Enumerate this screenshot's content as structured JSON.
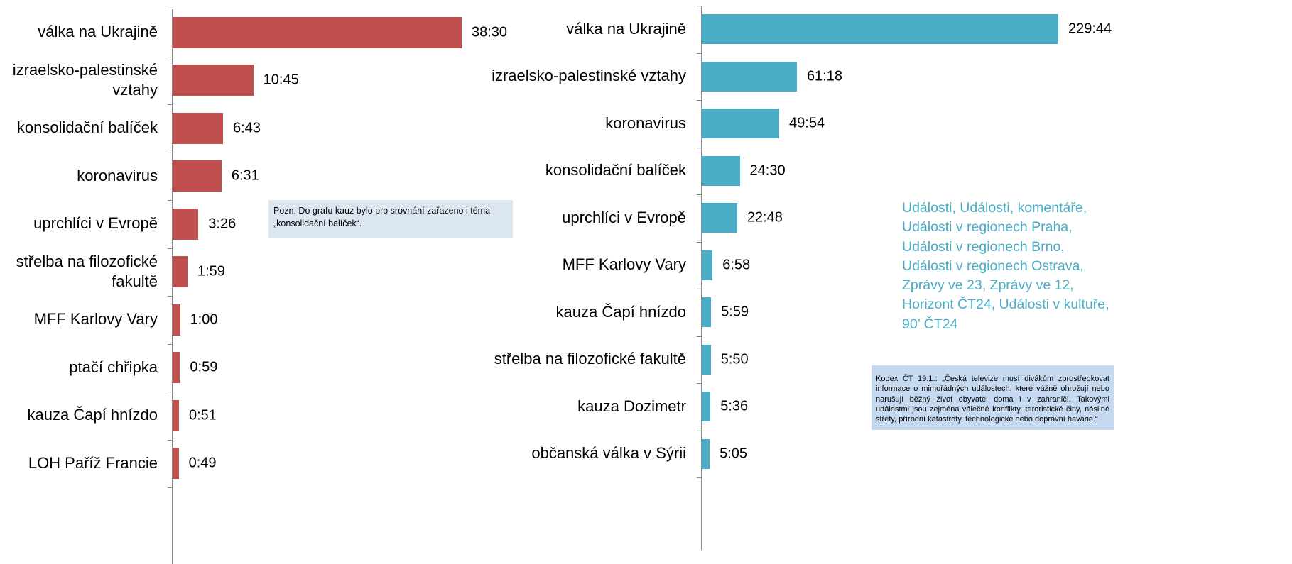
{
  "charts": [
    {
      "type": "bar",
      "orientation": "horizontal",
      "color": "#c0504d",
      "categories": [
        "válka na Ukrajině",
        "izraelsko-palestinské vztahy",
        "konsolidační balíček",
        "koronavirus",
        "uprchlíci v Evropě",
        "střelba na filozofické fakultě",
        "MFF Karlovy Vary",
        "ptačí chřipka",
        "kauza Čapí hnízdo",
        "LOH Paříž Francie"
      ],
      "values": [
        2310,
        645,
        403,
        391,
        206,
        119,
        60,
        59,
        51,
        49
      ],
      "value_labels": [
        "38:30",
        "10:45",
        "6:43",
        "6:31",
        "3:26",
        "1:59",
        "1:00",
        "0:59",
        "0:51",
        "0:49"
      ],
      "annotations": [
        "Pozn. Do grafu kauz bylo pro srovnání zařazeno i téma „konsolidační balíček“."
      ]
    },
    {
      "type": "bar",
      "orientation": "horizontal",
      "color": "#4bacc6",
      "categories": [
        "válka na Ukrajině",
        "izraelsko-palestinské vztahy",
        "koronavirus",
        "konsolidační balíček",
        "uprchlíci v Evropě",
        "MFF Karlovy Vary",
        "kauza Čapí hnízdo",
        "střelba na filozofické fakultě",
        "kauza Dozimetr",
        "občanská válka v Sýrii"
      ],
      "values": [
        13784,
        3678,
        2994,
        1470,
        1368,
        418,
        359,
        350,
        336,
        305
      ],
      "value_labels": [
        "229:44",
        "61:18",
        "49:54",
        "24:30",
        "22:48",
        "6:58",
        "5:59",
        "5:50",
        "5:36",
        "5:05"
      ],
      "annotations": [
        "Události, Události, komentáře, Události v regionech Praha, Události v regionech Brno, Události v regionech Ostrava, Zprávy ve 23, Zprávy ve 12, Horizont ČT24, Události v kultuře, 90’ ČT24",
        "Kodex ČT 19.1.: „Česká televize musí divákům zprostředkovat informace o mimořádných událostech, které vážně ohrožují nebo narušují běžný život obyvatel doma i v zahraničí. Takovými událostmi jsou zejména válečné konflikty, teroristické činy, násilné střety, přírodní katastrofy, technologické nebo dopravní havárie.“"
      ]
    }
  ]
}
